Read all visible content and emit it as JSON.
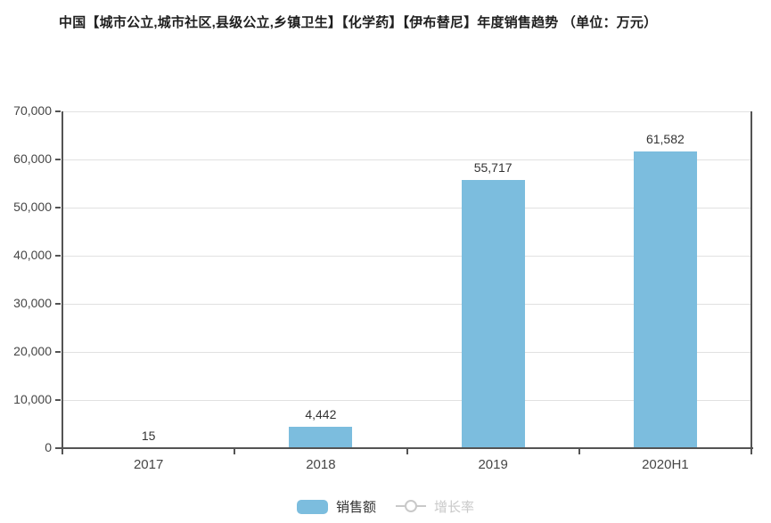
{
  "title": "中国【城市公立,城市社区,县级公立,乡镇卫生】【化学药】【伊布替尼】年度销售趋势 （单位：万元）",
  "chart_data": {
    "type": "bar",
    "categories": [
      "2017",
      "2018",
      "2019",
      "2020H1"
    ],
    "series": [
      {
        "name": "销售额",
        "type": "bar",
        "values": [
          15,
          4442,
          55717,
          61582
        ],
        "color": "#7cbdde",
        "visible": true
      },
      {
        "name": "增长率",
        "type": "line",
        "values": [],
        "color": "#c9c9c9",
        "visible": false
      }
    ],
    "value_labels": [
      "15",
      "4,442",
      "55,717",
      "61,582"
    ],
    "ylim": [
      0,
      70000
    ],
    "ytick_step": 10000,
    "ytick_labels": [
      "0",
      "10,000",
      "20,000",
      "30,000",
      "40,000",
      "50,000",
      "60,000",
      "70,000"
    ],
    "grid": true,
    "legend_position": "bottom"
  },
  "colors": {
    "bar": "#7cbdde",
    "axis": "#545454",
    "gridline": "#e1e1e1",
    "disabled_legend": "#c9c9c9",
    "label_text": "#333333"
  }
}
